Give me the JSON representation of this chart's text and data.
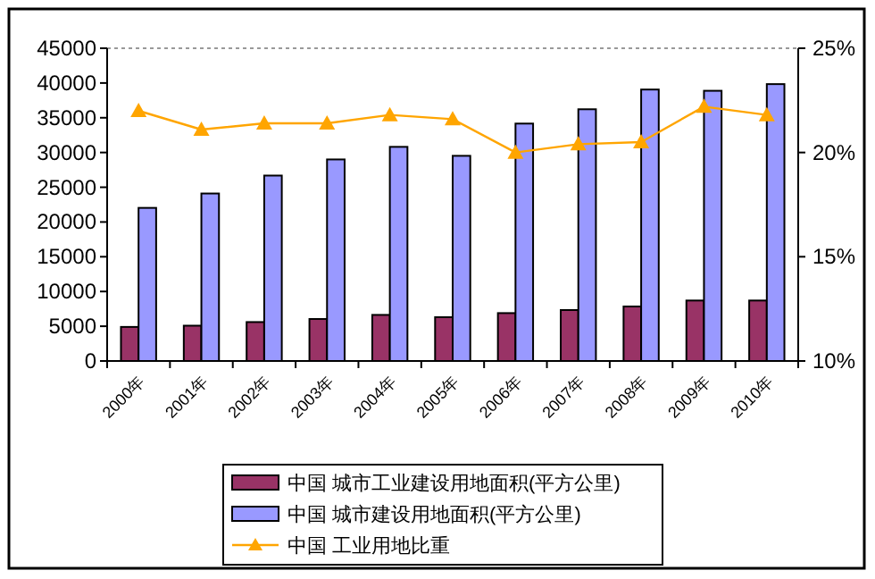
{
  "chart_data": {
    "type": "bar",
    "categories": [
      "2000年",
      "2001年",
      "2002年",
      "2003年",
      "2004年",
      "2005年",
      "2006年",
      "2007年",
      "2008年",
      "2009年",
      "2010年"
    ],
    "series": [
      {
        "name": "中国  城市工业建设用地面积(平方公里)",
        "color": "#993366",
        "values": [
          4900,
          5080,
          5600,
          6040,
          6630,
          6300,
          6890,
          7330,
          7840,
          8700,
          8700
        ]
      },
      {
        "name": "中国  城市建设用地面积(平方公里)",
        "color": "#9999ff",
        "values": [
          22030,
          24100,
          26680,
          29000,
          30810,
          29520,
          34160,
          36220,
          39060,
          38880,
          39840
        ]
      },
      {
        "name": "中国  工业用地比重",
        "type": "line",
        "axis": "y2",
        "color": "#ffa500",
        "marker": "triangle",
        "values": [
          22.0,
          21.1,
          21.4,
          21.4,
          21.8,
          21.6,
          20.0,
          20.4,
          20.5,
          22.2,
          21.8
        ]
      }
    ],
    "ylim": [
      0,
      45000
    ],
    "yticks": [
      0,
      5000,
      10000,
      15000,
      20000,
      25000,
      30000,
      35000,
      40000,
      45000
    ],
    "y2lim": [
      10,
      25
    ],
    "y2ticks": [
      {
        "value": 10,
        "label": "10%"
      },
      {
        "value": 15,
        "label": "15%"
      },
      {
        "value": 20,
        "label": "20%"
      },
      {
        "value": 25,
        "label": "25%"
      }
    ],
    "legend": "bottom",
    "grid": false
  }
}
